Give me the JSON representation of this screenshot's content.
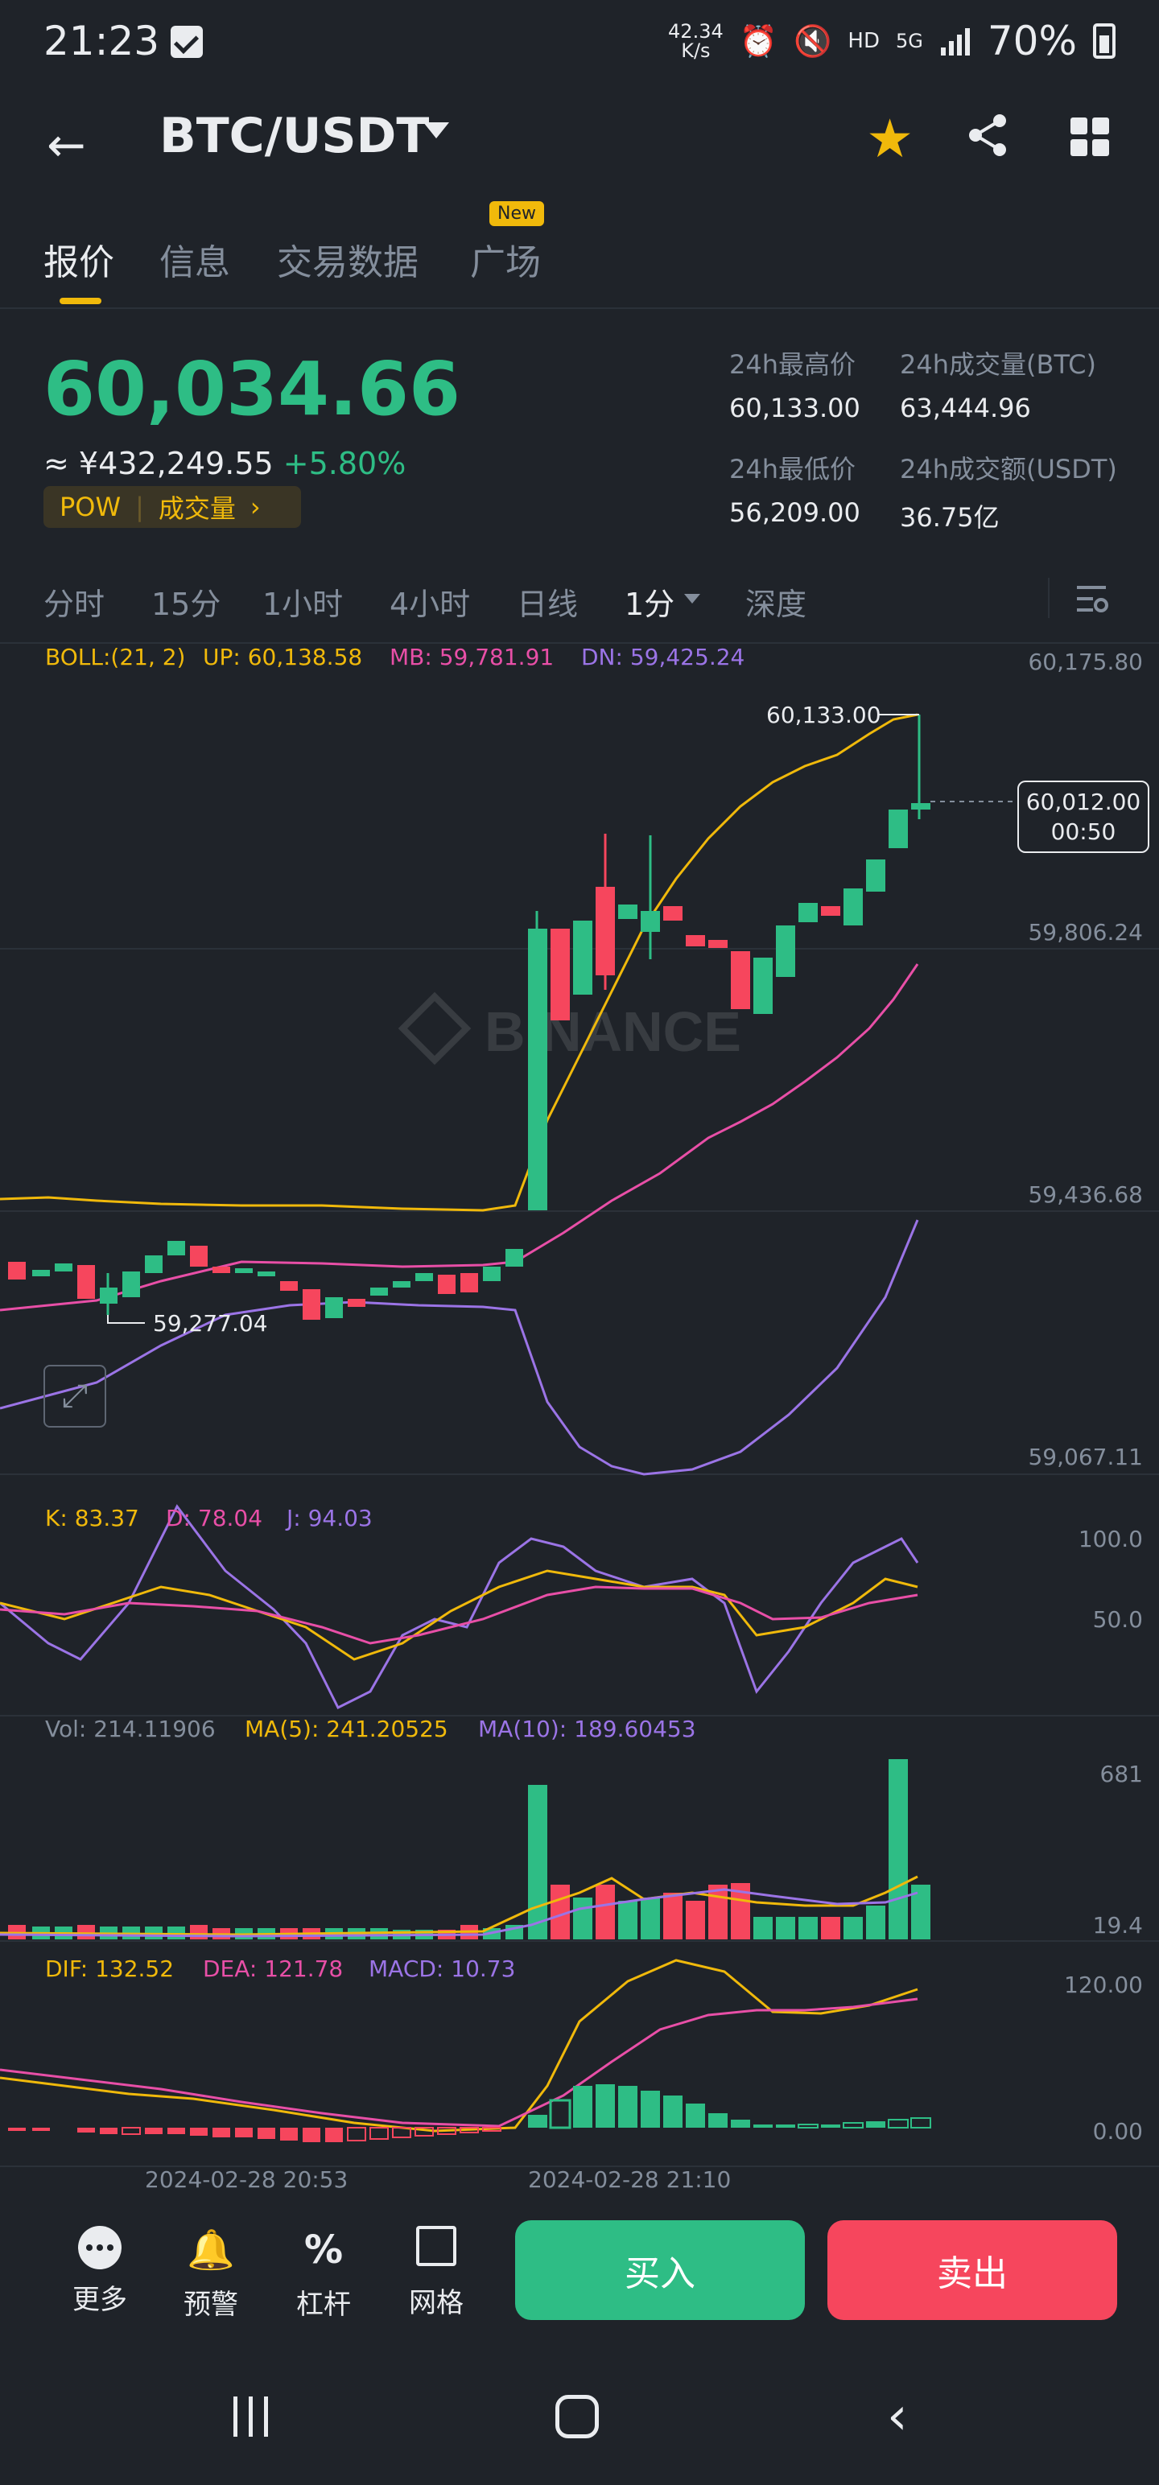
{
  "status_bar": {
    "time": "21:23",
    "net_speed_value": "42.34",
    "net_speed_unit": "K/s",
    "network_label": "HD",
    "signal_label": "5G",
    "battery": "70%"
  },
  "header": {
    "pair": "BTC/USDT"
  },
  "tabs": {
    "items": [
      "报价",
      "信息",
      "交易数据",
      "广场"
    ],
    "new_badge": "New"
  },
  "price": {
    "last": "60,034.66",
    "cny": "≈ ¥432,249.55",
    "change": "+5.80%",
    "tag": "POW",
    "tag_link": "成交量"
  },
  "stats": {
    "high_label": "24h最高价",
    "high": "60,133.00",
    "vol_btc_label": "24h成交量(BTC)",
    "vol_btc": "63,444.96",
    "low_label": "24h最低价",
    "low": "56,209.00",
    "vol_usdt_label": "24h成交额(USDT)",
    "vol_usdt": "36.75亿"
  },
  "intervals": {
    "items": [
      "分时",
      "15分",
      "1小时",
      "4小时",
      "日线",
      "1分",
      "深度"
    ]
  },
  "boll": {
    "label": "BOLL:(21, 2)",
    "up": "UP: 60,138.58",
    "mb": "MB: 59,781.91",
    "dn": "DN: 59,425.24"
  },
  "main_chart": {
    "axis": [
      "60,175.80",
      "59,806.24",
      "59,436.68",
      "59,067.11"
    ],
    "high_marker": "60,133.00",
    "low_marker": "59,277.04",
    "current_price": "60,012.00",
    "countdown": "00:50",
    "watermark": "BINANCE"
  },
  "kdj": {
    "k": "K: 83.37",
    "d": "D: 78.04",
    "j": "J: 94.03",
    "axis": [
      "100.0",
      "50.0"
    ]
  },
  "vol": {
    "vol": "Vol: 214.11906",
    "ma5": "MA(5): 241.20525",
    "ma10": "MA(10): 189.60453",
    "axis": [
      "681",
      "19.4"
    ]
  },
  "macd": {
    "dif": "DIF: 132.52",
    "dea": "DEA: 121.78",
    "macd": "MACD: 10.73",
    "axis": [
      "120.00",
      "0.00"
    ]
  },
  "time_axis": [
    "2024-02-28 20:53",
    "2024-02-28 21:10"
  ],
  "bottom_bar": {
    "more": "更多",
    "alert": "预警",
    "leverage": "杠杆",
    "grid": "网格",
    "buy": "买入",
    "sell": "卖出"
  },
  "chart_data": {
    "type": "candlestick",
    "x": [
      "2024-02-28 20:53",
      "2024-02-28 21:10"
    ],
    "y_ticks": [
      60175.8,
      59806.24,
      59436.68,
      59067.11
    ],
    "high": 60133.0,
    "low": 59277.04,
    "last": 60012.0,
    "colors": {
      "up": "#2ebd85",
      "down": "#f6465d",
      "boll_up": "#f0b90b",
      "boll_mb": "#e84fa7",
      "boll_dn": "#9b74e6"
    }
  }
}
